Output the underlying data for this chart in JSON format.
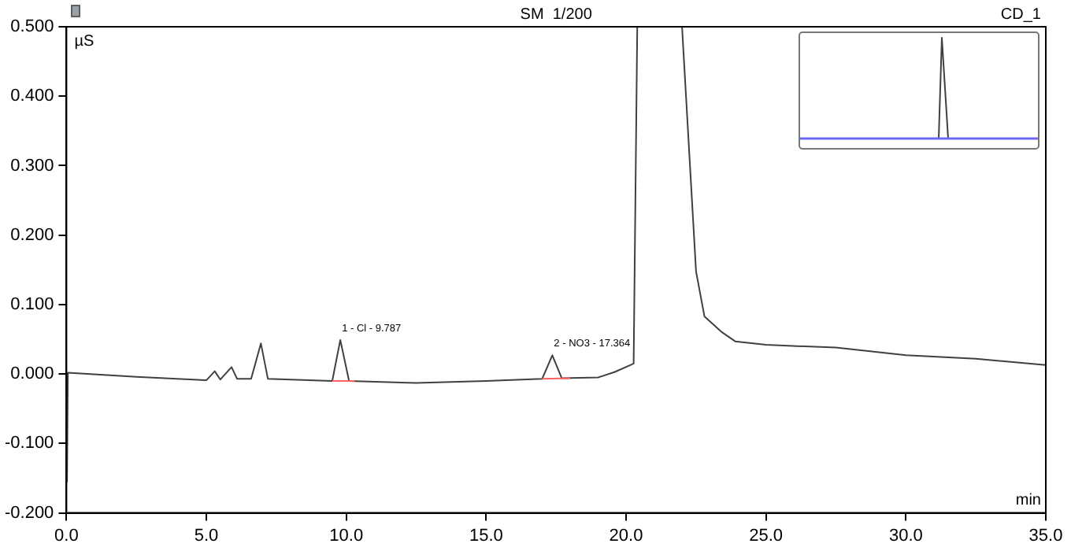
{
  "chart_data": {
    "type": "line",
    "xlabel": "min",
    "ylabel": "µS",
    "annotations": [
      "SM  1/200",
      "CD_1",
      {
        "text": "1 - Cl - 9.787",
        "x": 9.787,
        "y": 0.049
      },
      {
        "text": "2 - NO3 - 17.364",
        "x": 17.364,
        "y": 0.027
      }
    ],
    "series": [
      {
        "color": "#404040",
        "x": [
          0.0,
          0.02,
          0.05,
          2.5,
          5.0,
          5.3,
          5.5,
          5.9,
          6.1,
          6.6,
          6.95,
          7.2,
          9.5,
          9.787,
          10.1,
          12.5,
          15.0,
          17.0,
          17.364,
          17.7,
          19.0,
          19.6,
          20.1,
          20.27,
          20.4,
          22.0,
          22.5,
          22.8,
          23.4,
          23.9,
          25.0,
          27.5,
          30.0,
          32.5,
          35.0
        ],
        "values": [
          0.0,
          -0.155,
          0.002,
          -0.004,
          -0.009,
          0.004,
          -0.008,
          0.01,
          -0.007,
          -0.007,
          0.044,
          -0.007,
          -0.01,
          0.049,
          -0.01,
          -0.013,
          -0.01,
          -0.007,
          0.027,
          -0.006,
          -0.005,
          0.003,
          0.012,
          0.015,
          0.5,
          0.5,
          0.148,
          0.083,
          0.061,
          0.047,
          0.042,
          0.038,
          0.027,
          0.022,
          0.013
        ]
      },
      {
        "color": "#ff6060",
        "x": [
          9.5,
          10.3
        ],
        "values": [
          -0.01,
          -0.01
        ]
      },
      {
        "color": "#ff6060",
        "x": [
          17.0,
          18.0
        ],
        "values": [
          -0.007,
          -0.006
        ]
      }
    ],
    "xlim": [
      0,
      35
    ],
    "ylim": [
      -0.2,
      0.5
    ],
    "xticks": [
      {
        "value": 0,
        "label": "0.0"
      },
      {
        "value": 5,
        "label": "5.0"
      },
      {
        "value": 10,
        "label": "10.0"
      },
      {
        "value": 15,
        "label": "15.0"
      },
      {
        "value": 20,
        "label": "20.0"
      },
      {
        "value": 25,
        "label": "25.0"
      },
      {
        "value": 30,
        "label": "30.0"
      },
      {
        "value": 35,
        "label": "35.0"
      }
    ],
    "yticks": [
      {
        "value": -0.2,
        "label": "-0.200"
      },
      {
        "value": -0.1,
        "label": "-0.100"
      },
      {
        "value": 0,
        "label": "0.000"
      },
      {
        "value": 0.1,
        "label": "0.100"
      },
      {
        "value": 0.2,
        "label": "0.200"
      },
      {
        "value": 0.3,
        "label": "0.300"
      },
      {
        "value": 0.4,
        "label": "0.400"
      },
      {
        "value": 0.5,
        "label": "0.500"
      }
    ],
    "grid": false,
    "legend": false,
    "marker": "none",
    "line_style": "solid"
  }
}
